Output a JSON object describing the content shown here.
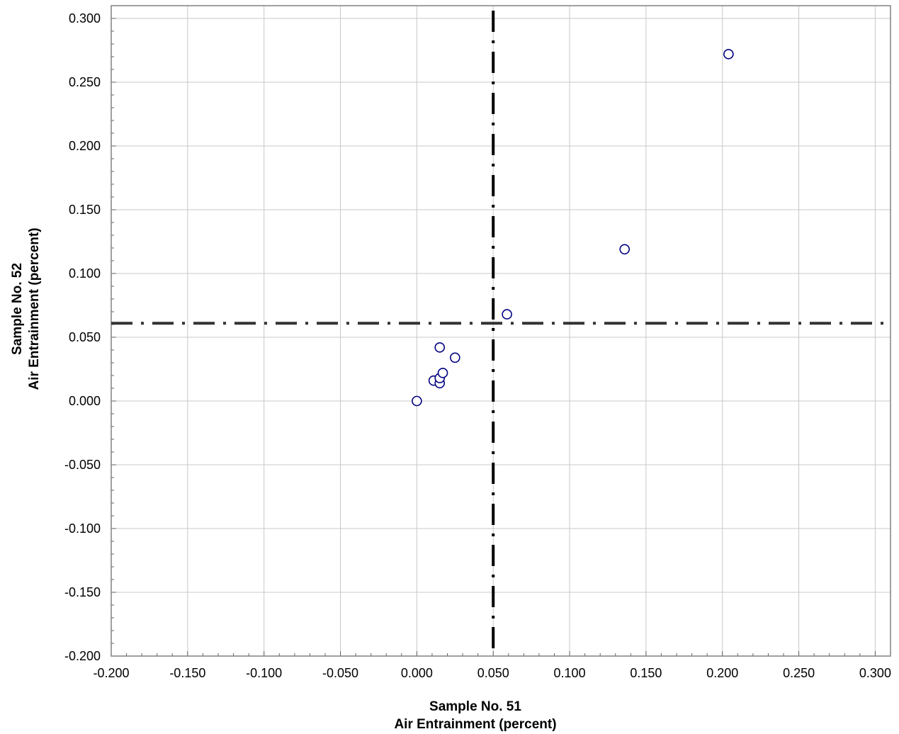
{
  "chart_data": {
    "type": "scatter",
    "title": "",
    "xlabel": [
      "Sample No. 51",
      "Air Entrainment (percent)"
    ],
    "ylabel": [
      "Sample No. 52",
      "Air Entrainment (percent)"
    ],
    "xlim": [
      -0.2,
      0.31
    ],
    "ylim": [
      -0.2,
      0.31
    ],
    "xticks": [
      -0.2,
      -0.15,
      -0.1,
      -0.05,
      0.0,
      0.05,
      0.1,
      0.15,
      0.2,
      0.25,
      0.3
    ],
    "yticks": [
      -0.2,
      -0.15,
      -0.1,
      -0.05,
      0.0,
      0.05,
      0.1,
      0.15,
      0.2,
      0.25,
      0.3
    ],
    "xtick_labels": [
      "-0.200",
      "-0.150",
      "-0.100",
      "-0.050",
      "0.000",
      "0.050",
      "0.100",
      "0.150",
      "0.200",
      "0.250",
      "0.300"
    ],
    "ytick_labels": [
      "-0.200",
      "-0.150",
      "-0.100",
      "-0.050",
      "0.000",
      "0.050",
      "0.100",
      "0.150",
      "0.200",
      "0.250",
      "0.300"
    ],
    "grid": true,
    "reference_lines": {
      "x": 0.05,
      "y": 0.061,
      "style": "dash-dot"
    },
    "marker": {
      "shape": "open-circle",
      "color": "#000080"
    },
    "points": [
      {
        "x": 0.0,
        "y": 0.0
      },
      {
        "x": 0.011,
        "y": 0.016
      },
      {
        "x": 0.015,
        "y": 0.014
      },
      {
        "x": 0.015,
        "y": 0.018
      },
      {
        "x": 0.017,
        "y": 0.022
      },
      {
        "x": 0.015,
        "y": 0.042
      },
      {
        "x": 0.025,
        "y": 0.034
      },
      {
        "x": 0.059,
        "y": 0.068
      },
      {
        "x": 0.136,
        "y": 0.119
      },
      {
        "x": 0.204,
        "y": 0.272
      }
    ],
    "colors": {
      "grid": "#c8c8c8",
      "reference_line": "#333333",
      "axis": "#808080"
    }
  }
}
